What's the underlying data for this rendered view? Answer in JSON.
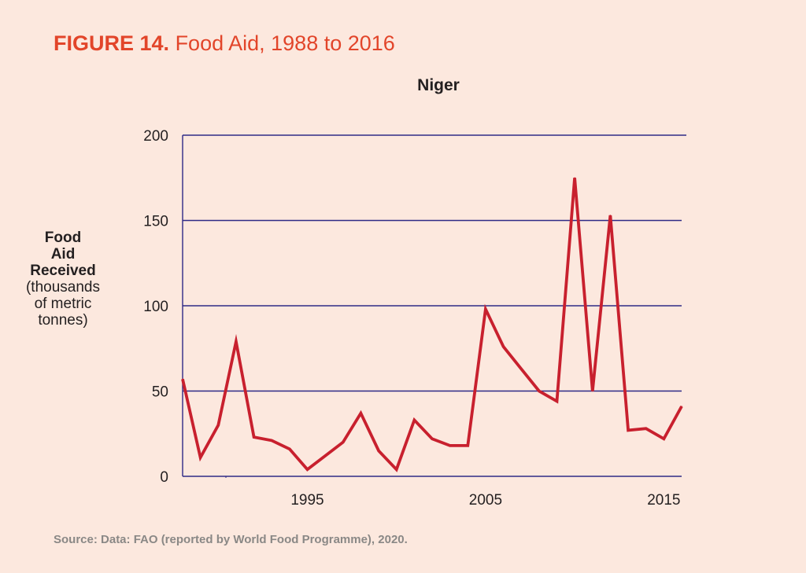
{
  "figure": {
    "label": "FIGURE 14.",
    "title": "Food Aid, 1988 to 2016",
    "source": "Source: Data: FAO (reported by World Food Programme), 2020."
  },
  "chart_data": {
    "type": "line",
    "title": "Niger",
    "ylabel_lines_bold": [
      "Food",
      "Aid",
      "Received"
    ],
    "ylabel_lines_regular": [
      "(thousands",
      "of metric",
      "tonnes)"
    ],
    "xlabel": "",
    "x_range": [
      1988,
      2016
    ],
    "ylim": [
      0,
      200
    ],
    "yticks": [
      0,
      50,
      100,
      150,
      200
    ],
    "xticks": [
      1995,
      2005,
      2015
    ],
    "grid": "horizontal",
    "line_color": "#c8202e",
    "grid_color": "#2e2a86",
    "series": [
      {
        "x": [
          1988,
          1989,
          1990,
          1991,
          1992,
          1993,
          1994,
          1995,
          1996,
          1997,
          1998,
          1999,
          2000,
          2001,
          2002,
          2003,
          2004,
          2005,
          2006,
          2007,
          2008,
          2009,
          2010,
          2011,
          2012,
          2013,
          2014,
          2015,
          2016
        ],
        "values": [
          57,
          11,
          30,
          79,
          23,
          21,
          16,
          4,
          12,
          20,
          37,
          15,
          4,
          33,
          22,
          18,
          18,
          98,
          76,
          63,
          50,
          44,
          175,
          50,
          153,
          27,
          28,
          22,
          41
        ]
      }
    ]
  }
}
